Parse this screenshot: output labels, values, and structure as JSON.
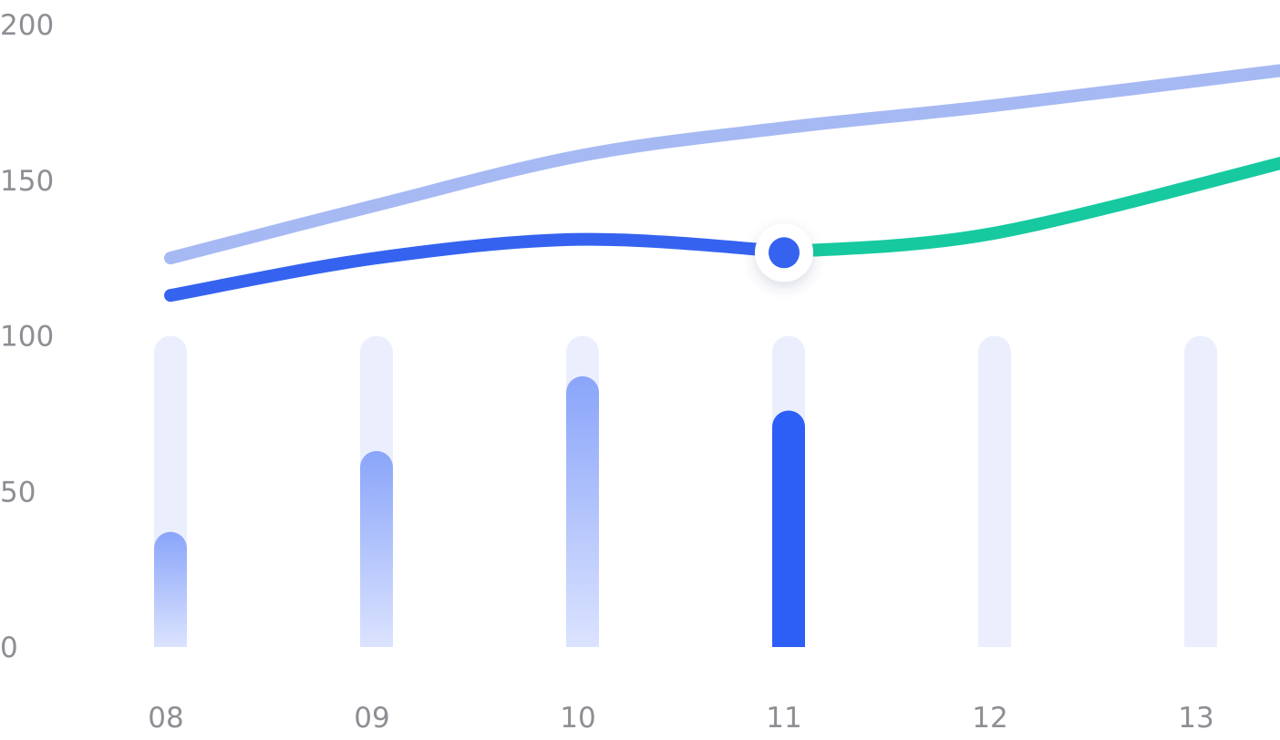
{
  "chart_data": {
    "type": "bar",
    "categories": [
      "08",
      "09",
      "10",
      "11",
      "12",
      "13"
    ],
    "y_ticks": [
      "0",
      "50",
      "100",
      "150",
      "200"
    ],
    "ylim": [
      0,
      200
    ],
    "bar_track_max": 100,
    "bars": {
      "name": "",
      "values": [
        37,
        63,
        87,
        76,
        null,
        null
      ],
      "highlight_index": 3
    },
    "series": [
      {
        "name": "",
        "type": "line",
        "values": [
          125,
          142,
          158,
          167,
          174,
          186
        ],
        "color": "#a6b9f3"
      },
      {
        "name": "",
        "type": "line",
        "values": [
          113,
          125,
          131,
          127,
          133,
          157
        ],
        "color": "#3563f0",
        "future_color": "#17c99f",
        "marker_index": 3
      }
    ],
    "colors": {
      "track": "#ebeffd",
      "bar_gradient_top": "#8aa5fa",
      "bar_gradient_bottom": "#dbe3fe",
      "bar_highlight": "#2d5ef5",
      "tick_text": "#8e8e94"
    },
    "grid": false,
    "legend": "none"
  }
}
